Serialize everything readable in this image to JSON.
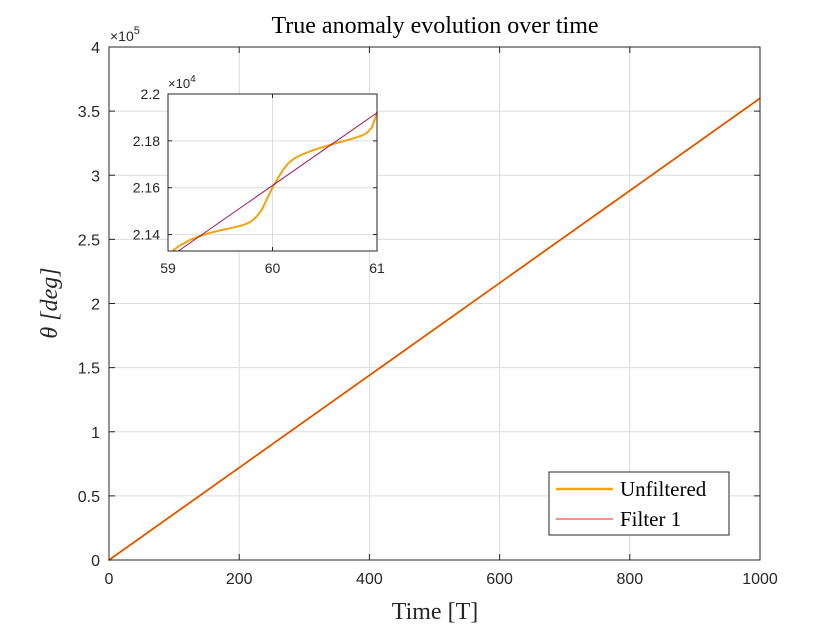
{
  "chart_data": [
    {
      "type": "line",
      "title": "True anomaly evolution over time",
      "xlabel": "Time [T]",
      "ylabel": "θ [deg]",
      "xlim": [
        0,
        1000
      ],
      "ylim": [
        0,
        400000
      ],
      "xticks": [
        0,
        200,
        400,
        600,
        800,
        1000
      ],
      "yticks": [
        0,
        50000,
        100000,
        150000,
        200000,
        250000,
        300000,
        350000,
        400000
      ],
      "xtick_labels": [
        "0",
        "200",
        "400",
        "600",
        "800",
        "1000"
      ],
      "ytick_labels": [
        "0",
        "0.5",
        "1",
        "1.5",
        "2",
        "2.5",
        "3",
        "3.5",
        "4"
      ],
      "y_exponent_label": "×10",
      "y_exponent": "5",
      "grid": true,
      "legend_position": "bottom-right",
      "series": [
        {
          "name": "Unfiltered",
          "color": "#F5A30E",
          "x": [
            0,
            1000
          ],
          "y": [
            0,
            360000
          ]
        },
        {
          "name": "Filter 1",
          "color": "#E52B0D",
          "x": [
            0,
            1000
          ],
          "y": [
            0,
            360000
          ]
        }
      ]
    },
    {
      "type": "line",
      "role": "inset",
      "xlim": [
        59,
        61
      ],
      "ylim": [
        21330,
        22000
      ],
      "xticks": [
        59,
        60,
        61
      ],
      "yticks": [
        21400,
        21600,
        21800,
        22000
      ],
      "xtick_labels": [
        "59",
        "60",
        "61"
      ],
      "ytick_labels": [
        "2.14",
        "2.16",
        "2.18",
        "2.2"
      ],
      "y_exponent_label": "×10",
      "y_exponent": "4",
      "grid": true,
      "series": [
        {
          "name": "Unfiltered",
          "color": "#F5A30E",
          "x": [
            59.05,
            59.1,
            59.2,
            59.3,
            59.4,
            59.5,
            59.6,
            59.7,
            59.75,
            59.8,
            59.85,
            59.9,
            59.95,
            60.0,
            60.05,
            60.1,
            60.15,
            60.2,
            60.25,
            60.3,
            60.4,
            60.5,
            60.6,
            60.7,
            60.8,
            60.85,
            60.9,
            60.95,
            61.0
          ],
          "y": [
            21332,
            21350,
            21375,
            21393,
            21407,
            21418,
            21428,
            21438,
            21446,
            21458,
            21478,
            21508,
            21556,
            21600,
            21640,
            21676,
            21704,
            21722,
            21735,
            21745,
            21762,
            21776,
            21789,
            21801,
            21814,
            21822,
            21833,
            21856,
            21920
          ]
        },
        {
          "name": "Filter 1",
          "color": "#A0105A",
          "x": [
            59.1,
            61.0
          ],
          "y": [
            21330,
            21920
          ]
        }
      ]
    }
  ]
}
